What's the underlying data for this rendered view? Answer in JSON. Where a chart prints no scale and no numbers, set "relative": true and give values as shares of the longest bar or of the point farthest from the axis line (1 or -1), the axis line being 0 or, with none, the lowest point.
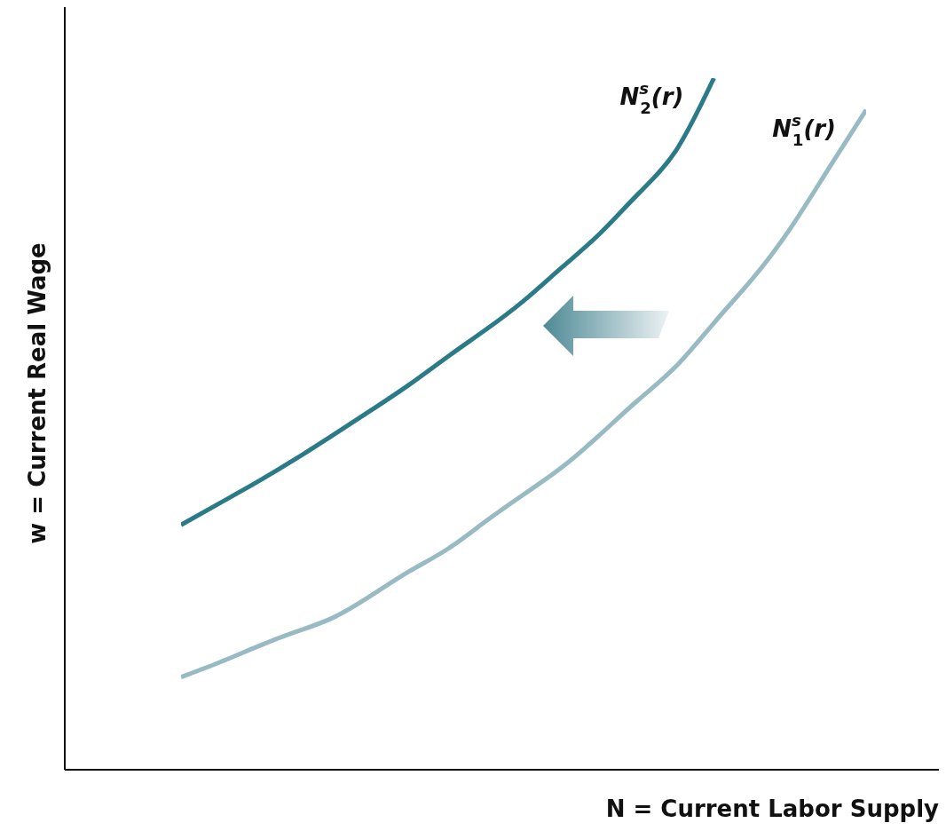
{
  "chart_data": {
    "type": "line",
    "relative": true,
    "xlabel": "N = Current Labor Supply",
    "ylabel": "w = Current Real Wage",
    "categories": [
      null,
      null,
      null,
      null,
      null,
      null,
      null,
      null,
      null,
      null,
      null,
      null,
      null,
      null,
      null,
      null,
      null,
      null,
      null
    ],
    "series": [
      {
        "name": "N$^{s}$$_{2}$(r)",
        "color": "#2a7b87",
        "values": [
          0.354,
          0.385,
          0.416,
          0.449,
          0.484,
          0.52,
          0.557,
          0.597,
          0.636,
          0.678,
          0.726,
          0.775,
          0.832,
          0.895,
          1,
          null,
          null,
          null,
          null
        ]
      },
      {
        "name": "N$^{s}$$_{1}$(r)",
        "color": "#98bac3",
        "values": [
          0.134,
          0.155,
          0.178,
          0.199,
          0.22,
          0.252,
          0.287,
          0.319,
          0.359,
          0.398,
          0.437,
          0.484,
          0.534,
          0.583,
          0.646,
          0.709,
          0.782,
          0.868,
          0.954
        ]
      }
    ]
  }
}
